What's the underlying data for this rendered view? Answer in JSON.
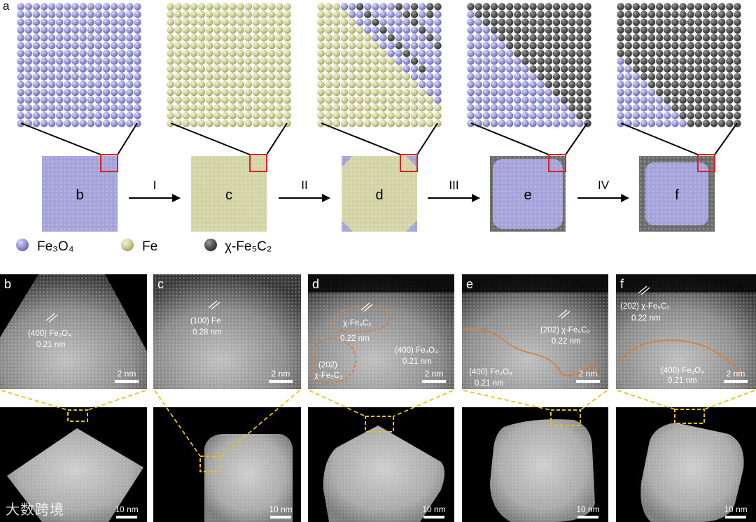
{
  "panel_a": {
    "label": "a",
    "stages": [
      {
        "label": "b",
        "boundary": 0.0,
        "core": "fe3o4",
        "edge": "none"
      },
      {
        "label": "c",
        "boundary": 0.0,
        "core": "fe",
        "edge": "none"
      },
      {
        "label": "d",
        "boundary": 0.45,
        "core": "fe",
        "edge": "corner"
      },
      {
        "label": "e",
        "boundary": 0.55,
        "core": "fe3o4",
        "edge": "thin"
      },
      {
        "label": "f",
        "boundary": 0.75,
        "core": "fe3o4",
        "edge": "thick"
      }
    ],
    "arrows": [
      "I",
      "II",
      "III",
      "IV"
    ],
    "legend": [
      {
        "key": "fe3o4",
        "text": "Fe₃O₄",
        "color": "#9b9ad8"
      },
      {
        "key": "fe",
        "text": "Fe",
        "color": "#cfd09a"
      },
      {
        "key": "chi",
        "text": "χ-Fe₅C₂",
        "color": "#5b5b5b"
      }
    ]
  },
  "panel_b": {
    "label": "b",
    "annotations": [
      {
        "text": "(400) Fe₃O₄"
      },
      {
        "text": "0.21 nm"
      }
    ],
    "scale_top": "2 nm",
    "scale_bottom": "10 nm"
  },
  "panel_c": {
    "label": "c",
    "annotations": [
      {
        "text": "(100) Fe"
      },
      {
        "text": "0.28 nm"
      }
    ],
    "scale_top": "2 nm",
    "scale_bottom": "10 nm"
  },
  "panel_d": {
    "label": "d",
    "annotations": [
      {
        "text": "χ-Fe₅C₂"
      },
      {
        "text": "0.22 nm"
      },
      {
        "text": "(400) Fe₃O₄"
      },
      {
        "text": "0.21 nm"
      },
      {
        "text": "(202)"
      },
      {
        "text": "χ-Fe₅C₂"
      }
    ],
    "scale_top": "2 nm",
    "scale_bottom": "10 nm"
  },
  "panel_e": {
    "label": "e",
    "annotations": [
      {
        "text": "(202) χ-Fe₅C₂"
      },
      {
        "text": "0.22 nm"
      },
      {
        "text": "(400) Fe₃O₄"
      },
      {
        "text": "0.21 nm"
      }
    ],
    "scale_top": "2 nm",
    "scale_bottom": "10 nm"
  },
  "panel_f": {
    "label": "f",
    "annotations": [
      {
        "text": "(202) χ-Fe₅C₂"
      },
      {
        "text": "0.22 nm"
      },
      {
        "text": "(400) Fe₃O₄"
      },
      {
        "text": "0.21 nm"
      }
    ],
    "scale_top": "2 nm",
    "scale_bottom": "10 nm"
  },
  "watermark": "大数跨境"
}
